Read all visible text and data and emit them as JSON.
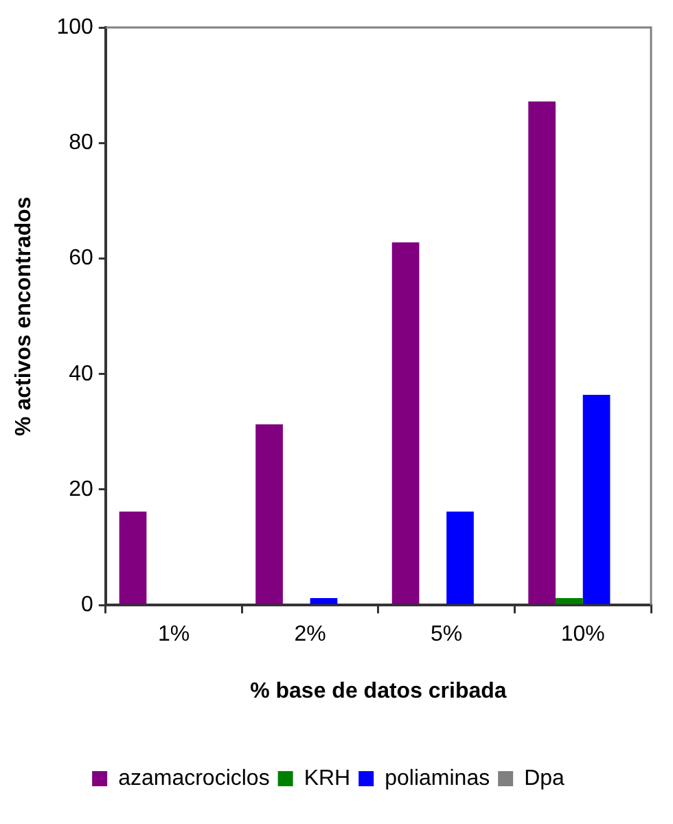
{
  "chart_data": {
    "type": "bar",
    "xlabel": "% base de datos cribada",
    "ylabel": "% activos encontrados",
    "categories": [
      "1%",
      "2%",
      "5%",
      "10%"
    ],
    "series": [
      {
        "name": "azamacrociclos",
        "color": "#800080",
        "values": [
          16.2,
          31.3,
          62.8,
          87.2
        ]
      },
      {
        "name": "KRH",
        "color": "#008000",
        "values": [
          0,
          0,
          0,
          1.2
        ]
      },
      {
        "name": "poliaminas",
        "color": "#0000ff",
        "values": [
          0,
          1.2,
          16.2,
          36.4
        ]
      },
      {
        "name": "Dpa",
        "color": "#808080",
        "values": [
          0,
          0,
          0,
          0
        ]
      }
    ],
    "ylim": [
      0,
      100
    ],
    "yticks": [
      0,
      20,
      40,
      60,
      80,
      100
    ],
    "grid": false,
    "legend": "bottom"
  }
}
